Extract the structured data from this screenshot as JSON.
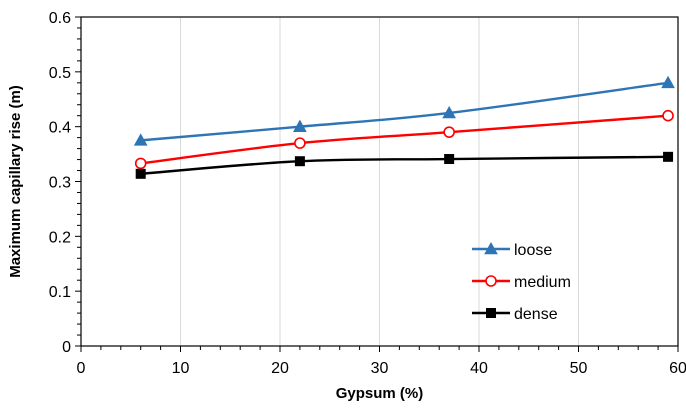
{
  "chart_data": {
    "type": "line",
    "title": "",
    "xlabel": "Gypsum (%)",
    "ylabel": "Maximum capillary rise (m)",
    "xlim": [
      0,
      60
    ],
    "ylim": [
      0,
      0.6
    ],
    "x_ticks": [
      "0",
      "10",
      "20",
      "30",
      "40",
      "50",
      "60"
    ],
    "y_ticks": [
      "0",
      "0.1",
      "0.2",
      "0.3",
      "0.4",
      "0.5",
      "0.6"
    ],
    "grid": "vertical",
    "legend_position": "bottom-right",
    "series": [
      {
        "name": "loose",
        "marker": "triangle",
        "color": "#2e75b6",
        "points": [
          [
            6,
            0.375
          ],
          [
            22,
            0.4
          ],
          [
            37,
            0.425
          ],
          [
            59,
            0.48
          ]
        ]
      },
      {
        "name": "medium",
        "marker": "open-circle",
        "color": "#ff0000",
        "points": [
          [
            6,
            0.333
          ],
          [
            22,
            0.37
          ],
          [
            37,
            0.39
          ],
          [
            59,
            0.42
          ]
        ]
      },
      {
        "name": "dense",
        "marker": "square",
        "color": "#000000",
        "points": [
          [
            6,
            0.314
          ],
          [
            22,
            0.337
          ],
          [
            37,
            0.341
          ],
          [
            59,
            0.345
          ]
        ]
      }
    ]
  }
}
